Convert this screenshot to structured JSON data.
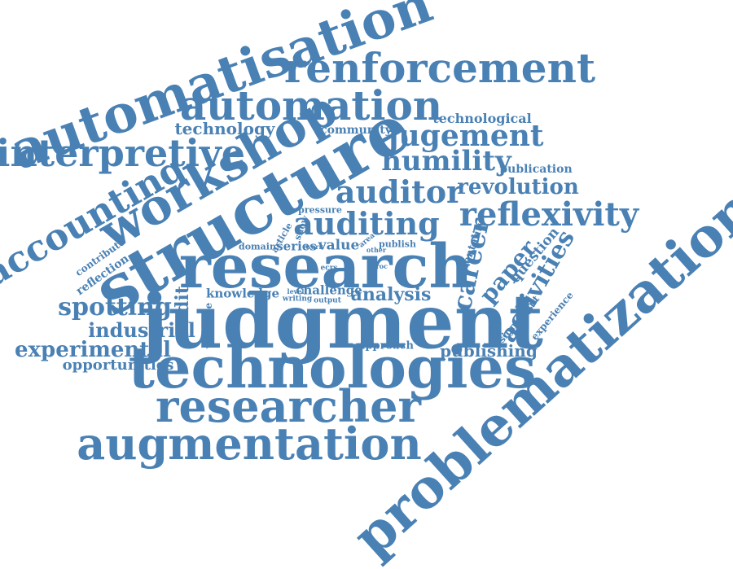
{
  "cloud": {
    "color": "#4a81b4",
    "words": {
      "automatisation": "automatisation",
      "renforcement": "renforcement",
      "automation": "automation",
      "technological": "technological",
      "technology": "technology",
      "community": "community",
      "jugement": "jugement",
      "interpretive": "interpretive",
      "workshop": "workshop",
      "structure": "structure",
      "humility": "humility",
      "publication": "publication",
      "accounting": "accounting",
      "auditor": "auditor",
      "revolution": "revolution",
      "reflexivity": "reflexivity",
      "auditing": "auditing",
      "pressure": "pressure",
      "career": "career",
      "problematization": "problematization",
      "research": "research",
      "contribute": "contribute",
      "article": "article",
      "show": "show",
      "domain": "domain",
      "series": "series",
      "work": "work",
      "value": "value",
      "area": "area",
      "other": "other",
      "publish": "publish",
      "mentality": "mentality",
      "question": "question",
      "paper": "paper",
      "activities": "activities",
      "reflection": "reflection",
      "ecrs": "ecrs",
      "proc": "proc",
      "knowledge": "knowledge",
      "level": "level",
      "writing": "writing",
      "challenge": "challenge",
      "output": "output",
      "analysis": "analysis",
      "significant": "significant",
      "experience": "experience",
      "spotting": "spotting",
      "audit": "audit",
      "judgment": "judgment",
      "industrial": "industrial",
      "valuable": "valuable",
      "approach": "approach",
      "experimental": "experimental",
      "publishing": "publishing",
      "opportunities": "opportunities",
      "technologies": "technologies",
      "researcher": "researcher",
      "augmentation": "augmentation"
    }
  }
}
